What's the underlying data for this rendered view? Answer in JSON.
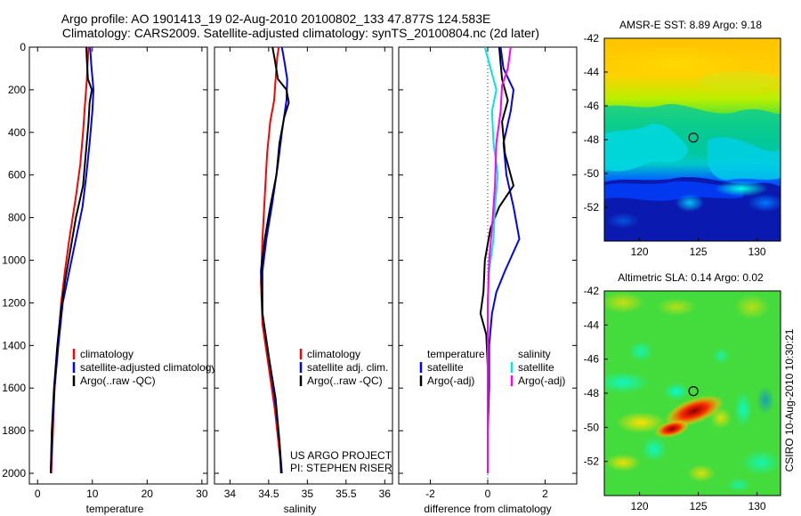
{
  "header": {
    "title_line1": "Argo profile: AO 1901413_19 02-Aug-2010 20100802_133 47.877S 124.583E",
    "title_line2": "Climatology: CARS2009. Satellite-adjusted climatology: synTS_20100804.nc (2d later)"
  },
  "footer": {
    "project": "US ARGO PROJECT",
    "pi": "PI: STEPHEN RISER",
    "stamp": "CSIRO 10-Aug-2010 10:30:21"
  },
  "colors": {
    "climatology": "#ff0000",
    "satellite": "#0000ff",
    "argo": "#000000",
    "sal_satellite": "#00e5e5",
    "sal_argo": "#ff00ff"
  },
  "chart_data": [
    {
      "type": "line",
      "xlabel": "temperature",
      "ylim": [
        2050,
        0
      ],
      "xlim": [
        -1.5,
        31
      ],
      "xticks": [
        "0",
        "10",
        "20",
        "30"
      ],
      "yticks": [
        "0",
        "200",
        "400",
        "600",
        "800",
        "1000",
        "1200",
        "1400",
        "1600",
        "1800",
        "2000"
      ],
      "legend": [
        "climatology",
        "satellite-adjusted climatology",
        "Argo(..raw -QC)"
      ],
      "series": [
        {
          "name": "climatology",
          "color": "#ff0000",
          "points": [
            [
              9.3,
              0
            ],
            [
              9.2,
              50
            ],
            [
              9.0,
              150
            ],
            [
              8.7,
              250
            ],
            [
              8.3,
              400
            ],
            [
              7.8,
              550
            ],
            [
              7.0,
              700
            ],
            [
              5.8,
              900
            ],
            [
              5.0,
              1050
            ],
            [
              4.3,
              1200
            ],
            [
              3.7,
              1400
            ],
            [
              3.1,
              1600
            ],
            [
              2.8,
              1800
            ],
            [
              2.5,
              2000
            ]
          ]
        },
        {
          "name": "satellite-adjusted climatology",
          "color": "#0000ff",
          "points": [
            [
              9.6,
              0
            ],
            [
              9.8,
              80
            ],
            [
              10.2,
              200
            ],
            [
              10.0,
              300
            ],
            [
              9.5,
              450
            ],
            [
              8.9,
              600
            ],
            [
              8.2,
              750
            ],
            [
              7.0,
              900
            ],
            [
              5.8,
              1050
            ],
            [
              4.6,
              1200
            ],
            [
              3.8,
              1400
            ],
            [
              3.1,
              1600
            ],
            [
              2.7,
              1800
            ],
            [
              2.4,
              2000
            ]
          ]
        },
        {
          "name": "Argo(..raw -QC)",
          "color": "#000000",
          "points": [
            [
              8.9,
              0
            ],
            [
              9.0,
              60
            ],
            [
              9.2,
              150
            ],
            [
              9.9,
              200
            ],
            [
              9.5,
              260
            ],
            [
              9.3,
              350
            ],
            [
              8.8,
              500
            ],
            [
              8.3,
              650
            ],
            [
              7.0,
              800
            ],
            [
              6.0,
              950
            ],
            [
              5.0,
              1100
            ],
            [
              4.2,
              1250
            ],
            [
              3.6,
              1400
            ],
            [
              3.0,
              1600
            ],
            [
              2.6,
              1800
            ],
            [
              2.4,
              2000
            ]
          ]
        }
      ]
    },
    {
      "type": "line",
      "xlabel": "salinity",
      "ylim": [
        2050,
        0
      ],
      "xlim": [
        33.8,
        36.1
      ],
      "xticks": [
        "34",
        "34.5",
        "35",
        "35.5",
        "36"
      ],
      "legend": [
        "climatology",
        "satellite adj. clim.",
        "Argo(..raw -QC)"
      ],
      "series": [
        {
          "name": "climatology",
          "color": "#ff0000",
          "points": [
            [
              34.63,
              0
            ],
            [
              34.61,
              50
            ],
            [
              34.59,
              150
            ],
            [
              34.57,
              250
            ],
            [
              34.52,
              350
            ],
            [
              34.48,
              500
            ],
            [
              34.45,
              700
            ],
            [
              34.42,
              900
            ],
            [
              34.4,
              1100
            ],
            [
              34.42,
              1300
            ],
            [
              34.5,
              1500
            ],
            [
              34.58,
              1700
            ],
            [
              34.64,
              1900
            ],
            [
              34.67,
              2000
            ]
          ]
        },
        {
          "name": "satellite adj. clim.",
          "color": "#0000ff",
          "points": [
            [
              34.67,
              0
            ],
            [
              34.7,
              60
            ],
            [
              34.74,
              150
            ],
            [
              34.73,
              250
            ],
            [
              34.67,
              400
            ],
            [
              34.62,
              550
            ],
            [
              34.54,
              750
            ],
            [
              34.47,
              900
            ],
            [
              34.42,
              1050
            ],
            [
              34.42,
              1250
            ],
            [
              34.5,
              1450
            ],
            [
              34.58,
              1650
            ],
            [
              34.64,
              1850
            ],
            [
              34.67,
              2000
            ]
          ]
        },
        {
          "name": "Argo(..raw -QC)",
          "color": "#000000",
          "points": [
            [
              34.55,
              0
            ],
            [
              34.58,
              60
            ],
            [
              34.62,
              150
            ],
            [
              34.73,
              200
            ],
            [
              34.76,
              260
            ],
            [
              34.7,
              330
            ],
            [
              34.64,
              450
            ],
            [
              34.6,
              600
            ],
            [
              34.52,
              750
            ],
            [
              34.45,
              900
            ],
            [
              34.4,
              1050
            ],
            [
              34.42,
              1250
            ],
            [
              34.5,
              1450
            ],
            [
              34.59,
              1650
            ],
            [
              34.64,
              1850
            ],
            [
              34.66,
              2000
            ]
          ]
        }
      ]
    },
    {
      "type": "line",
      "xlabel": "difference from climatology",
      "ylim": [
        2050,
        0
      ],
      "xlim": [
        -3.1,
        3.1
      ],
      "xticks": [
        "-2",
        "0",
        "2"
      ],
      "legend": [
        "temperature",
        "satellite",
        "Argo(-adj)",
        "salinity",
        "satellite",
        "Argo(-adj)"
      ],
      "series": [
        {
          "name": "temperature satellite",
          "color": "#0000ff",
          "points": [
            [
              0.45,
              0
            ],
            [
              0.55,
              100
            ],
            [
              0.9,
              200
            ],
            [
              0.8,
              300
            ],
            [
              0.55,
              450
            ],
            [
              0.65,
              600
            ],
            [
              0.9,
              750
            ],
            [
              1.1,
              900
            ],
            [
              0.6,
              1050
            ],
            [
              0.3,
              1150
            ],
            [
              0.15,
              1250
            ],
            [
              0.05,
              1400
            ],
            [
              0.05,
              1600
            ],
            [
              0.0,
              1800
            ],
            [
              0.0,
              2000
            ]
          ]
        },
        {
          "name": "temperature Argo(-adj)",
          "color": "#000000",
          "points": [
            [
              0.4,
              0
            ],
            [
              0.5,
              150
            ],
            [
              0.7,
              250
            ],
            [
              0.5,
              350
            ],
            [
              0.6,
              500
            ],
            [
              0.9,
              650
            ],
            [
              0.4,
              750
            ],
            [
              0.1,
              850
            ],
            [
              -0.1,
              1000
            ],
            [
              -0.15,
              1150
            ],
            [
              -0.25,
              1250
            ],
            [
              -0.05,
              1350
            ],
            [
              0.0,
              1500
            ],
            [
              0.0,
              2000
            ]
          ]
        },
        {
          "name": "salinity satellite",
          "color": "#00e5e5",
          "points": [
            [
              -0.1,
              0
            ],
            [
              0.1,
              100
            ],
            [
              0.3,
              200
            ],
            [
              0.15,
              300
            ],
            [
              0.2,
              450
            ],
            [
              0.35,
              600
            ],
            [
              0.25,
              750
            ],
            [
              0.2,
              900
            ],
            [
              0.05,
              1050
            ],
            [
              0.0,
              1200
            ],
            [
              0.0,
              1400
            ],
            [
              0.0,
              1600
            ],
            [
              0.0,
              1800
            ],
            [
              0.0,
              2000
            ]
          ]
        },
        {
          "name": "salinity Argo(-adj)",
          "color": "#ff00ff",
          "points": [
            [
              0.8,
              0
            ],
            [
              0.7,
              100
            ],
            [
              0.5,
              180
            ],
            [
              0.45,
              300
            ],
            [
              0.3,
              450
            ],
            [
              0.25,
              650
            ],
            [
              0.15,
              850
            ],
            [
              0.05,
              1000
            ],
            [
              0.0,
              1200
            ],
            [
              0.0,
              1400
            ],
            [
              0.0,
              1600
            ],
            [
              0.0,
              2000
            ]
          ]
        }
      ]
    },
    {
      "type": "heatmap",
      "title": "AMSR-E SST: 8.89 Argo: 9.18",
      "xlim": [
        117,
        132
      ],
      "ylim": [
        -54,
        -42
      ],
      "xticks": [
        "120",
        "125",
        "130"
      ],
      "yticks": [
        "-42",
        "-44",
        "-46",
        "-48",
        "-50",
        "-52"
      ],
      "marker": {
        "lon": 124.583,
        "lat": -47.877
      }
    },
    {
      "type": "heatmap",
      "title": "Altimetric SLA: 0.14 Argo: 0.02",
      "xlim": [
        117,
        132
      ],
      "ylim": [
        -54,
        -42
      ],
      "xticks": [
        "120",
        "125",
        "130"
      ],
      "yticks": [
        "-42",
        "-44",
        "-46",
        "-48",
        "-50",
        "-52"
      ],
      "marker": {
        "lon": 124.583,
        "lat": -47.877
      }
    }
  ]
}
